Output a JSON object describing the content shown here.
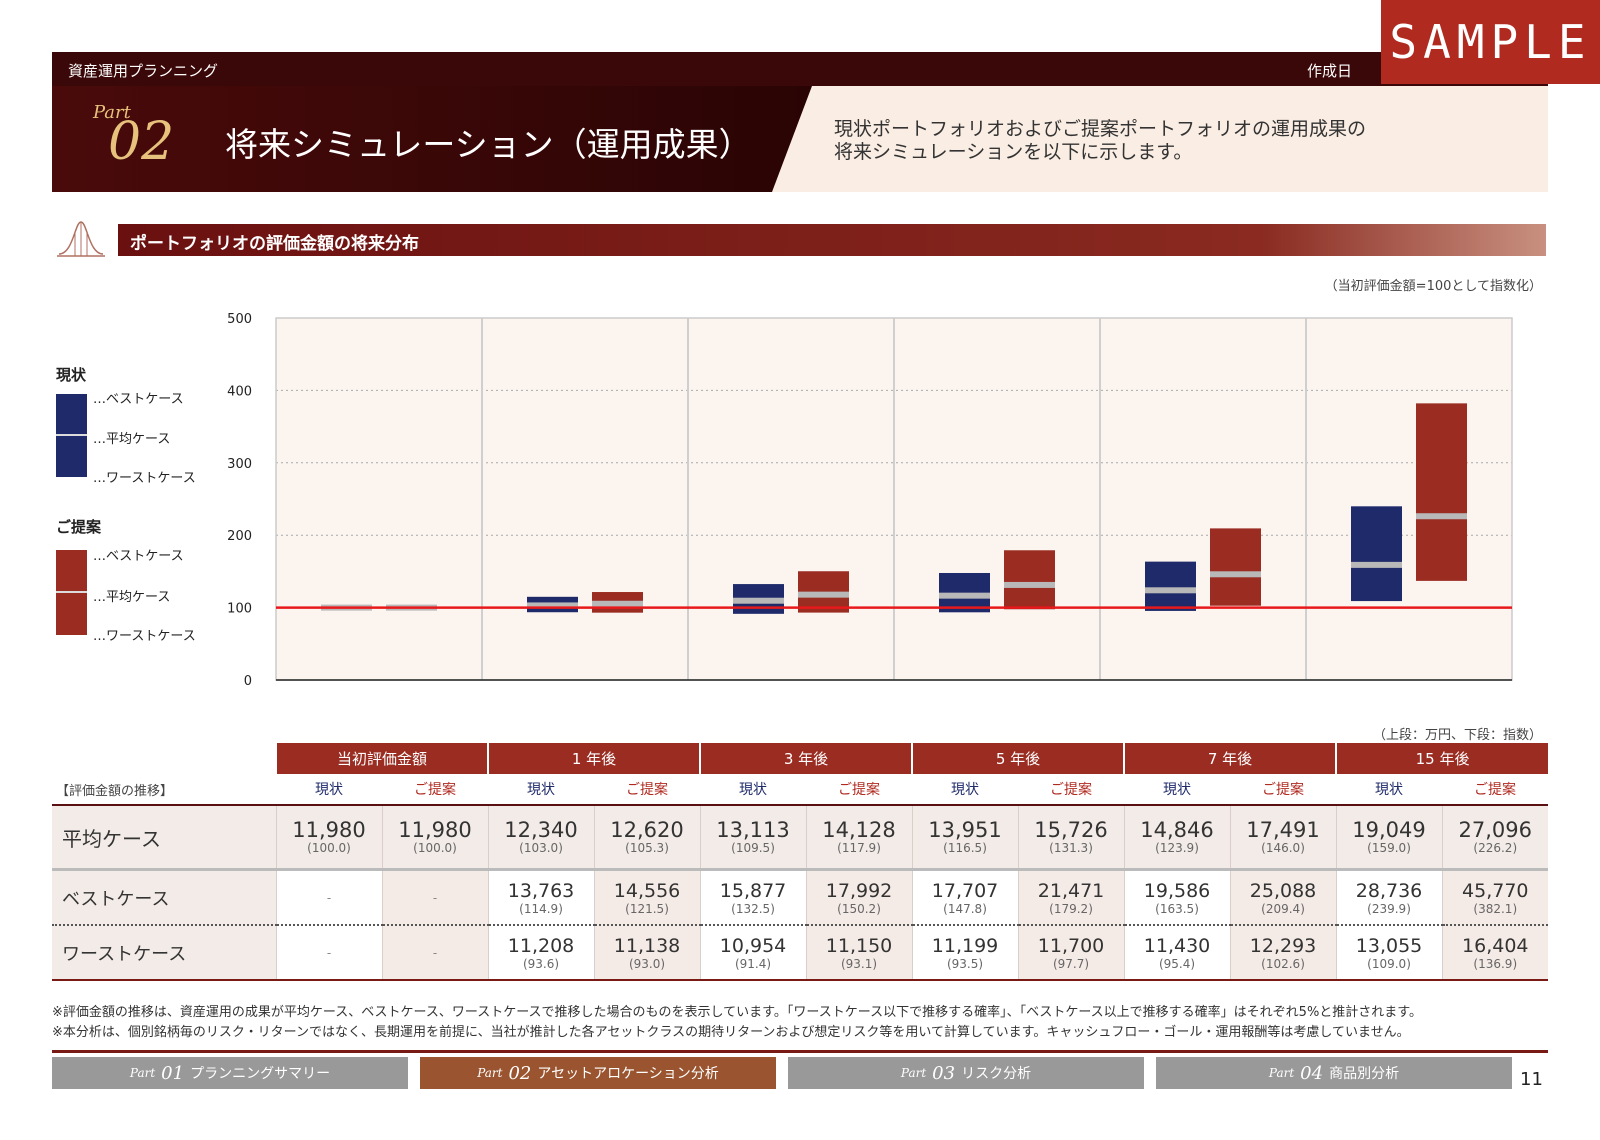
{
  "header": {
    "section_label": "資産運用プランニング",
    "date_label": "作成日",
    "sample_label": "SAMPLE",
    "part_word": "Part",
    "part_number": "02",
    "title": "将来シミュレーション（運用成果）",
    "description_line1": "現状ポートフォリオおよびご提案ポートフォリオの運用成果の",
    "description_line2": "将来シミュレーションを以下に示します。"
  },
  "section": {
    "heading": "ポートフォリオの評価金額の将来分布",
    "index_note": "（当初評価金額=100として指数化）"
  },
  "legend": {
    "current_heading": "現状",
    "proposal_heading": "ご提案",
    "best": "…ベストケース",
    "average": "…平均ケース",
    "worst": "…ワーストケース"
  },
  "colors": {
    "current": "#1f2a6a",
    "proposal": "#9a2c22",
    "average_marker": "#b8b8b8",
    "baseline": "#e8191b",
    "plot_bg": "#fcf4ef",
    "header_dark": "#3a0808",
    "accent": "#b02a20"
  },
  "chart_data": {
    "type": "bar",
    "subtype": "floating-range",
    "categories": [
      "当初評価金額",
      "1 年後",
      "3 年後",
      "5 年後",
      "7 年後",
      "15 年後"
    ],
    "series": [
      {
        "name": "現状",
        "best": [
          100.0,
          114.9,
          132.5,
          147.8,
          163.5,
          239.9
        ],
        "average": [
          100.0,
          103.0,
          109.5,
          116.5,
          123.9,
          159.0
        ],
        "worst": [
          100.0,
          93.6,
          91.4,
          93.5,
          95.4,
          109.0
        ]
      },
      {
        "name": "ご提案",
        "best": [
          100.0,
          121.5,
          150.2,
          179.2,
          209.4,
          382.1
        ],
        "average": [
          100.0,
          105.3,
          117.9,
          131.3,
          146.0,
          226.2
        ],
        "worst": [
          100.0,
          93.0,
          93.1,
          97.7,
          102.6,
          136.9
        ]
      }
    ],
    "yticks": [
      0,
      100,
      200,
      300,
      400,
      500
    ],
    "ylim": [
      0,
      500
    ],
    "baseline": 100,
    "grid": "dotted-horizontal",
    "legend_position": "left"
  },
  "table": {
    "unit_note": "（上段：万円、下段：指数）",
    "caption": "【評価金額の推移】",
    "periods": [
      "当初評価金額",
      "1 年後",
      "3 年後",
      "5 年後",
      "7 年後",
      "15 年後"
    ],
    "sub_current": "現状",
    "sub_proposal": "ご提案",
    "rows": [
      {
        "label": "平均ケース",
        "cells": [
          {
            "v": "11,980",
            "p": "(100.0)"
          },
          {
            "v": "11,980",
            "p": "(100.0)"
          },
          {
            "v": "12,340",
            "p": "(103.0)"
          },
          {
            "v": "12,620",
            "p": "(105.3)"
          },
          {
            "v": "13,113",
            "p": "(109.5)"
          },
          {
            "v": "14,128",
            "p": "(117.9)"
          },
          {
            "v": "13,951",
            "p": "(116.5)"
          },
          {
            "v": "15,726",
            "p": "(131.3)"
          },
          {
            "v": "14,846",
            "p": "(123.9)"
          },
          {
            "v": "17,491",
            "p": "(146.0)"
          },
          {
            "v": "19,049",
            "p": "(159.0)"
          },
          {
            "v": "27,096",
            "p": "(226.2)"
          }
        ]
      },
      {
        "label": "ベストケース",
        "cells": [
          {
            "v": "-",
            "p": ""
          },
          {
            "v": "-",
            "p": ""
          },
          {
            "v": "13,763",
            "p": "(114.9)"
          },
          {
            "v": "14,556",
            "p": "(121.5)"
          },
          {
            "v": "15,877",
            "p": "(132.5)"
          },
          {
            "v": "17,992",
            "p": "(150.2)"
          },
          {
            "v": "17,707",
            "p": "(147.8)"
          },
          {
            "v": "21,471",
            "p": "(179.2)"
          },
          {
            "v": "19,586",
            "p": "(163.5)"
          },
          {
            "v": "25,088",
            "p": "(209.4)"
          },
          {
            "v": "28,736",
            "p": "(239.9)"
          },
          {
            "v": "45,770",
            "p": "(382.1)"
          }
        ]
      },
      {
        "label": "ワーストケース",
        "cells": [
          {
            "v": "-",
            "p": ""
          },
          {
            "v": "-",
            "p": ""
          },
          {
            "v": "11,208",
            "p": "(93.6)"
          },
          {
            "v": "11,138",
            "p": "(93.0)"
          },
          {
            "v": "10,954",
            "p": "(91.4)"
          },
          {
            "v": "11,150",
            "p": "(93.1)"
          },
          {
            "v": "11,199",
            "p": "(93.5)"
          },
          {
            "v": "11,700",
            "p": "(97.7)"
          },
          {
            "v": "11,430",
            "p": "(95.4)"
          },
          {
            "v": "12,293",
            "p": "(102.6)"
          },
          {
            "v": "13,055",
            "p": "(109.0)"
          },
          {
            "v": "16,404",
            "p": "(136.9)"
          }
        ]
      }
    ]
  },
  "footnotes": {
    "line1": "※評価金額の推移は、資産運用の成果が平均ケース、ベストケース、ワーストケースで推移した場合のものを表示しています。「ワーストケース以下で推移する確率」、「ベストケース以上で推移する確率」はそれぞれ5%と推計されます。",
    "line2": "※本分析は、個別銘柄毎のリスク・リターンではなく、長期運用を前提に、当社が推計した各アセットクラスの期待リターンおよび想定リスク等を用いて計算しています。キャッシュフロー・ゴール・運用報酬等は考慮していません。"
  },
  "nav": {
    "tabs": [
      {
        "part": "Part",
        "num": "01",
        "label": "プランニングサマリー"
      },
      {
        "part": "Part",
        "num": "02",
        "label": "アセットアロケーション分析"
      },
      {
        "part": "Part",
        "num": "03",
        "label": "リスク分析"
      },
      {
        "part": "Part",
        "num": "04",
        "label": "商品別分析"
      }
    ],
    "page_number": "11"
  }
}
